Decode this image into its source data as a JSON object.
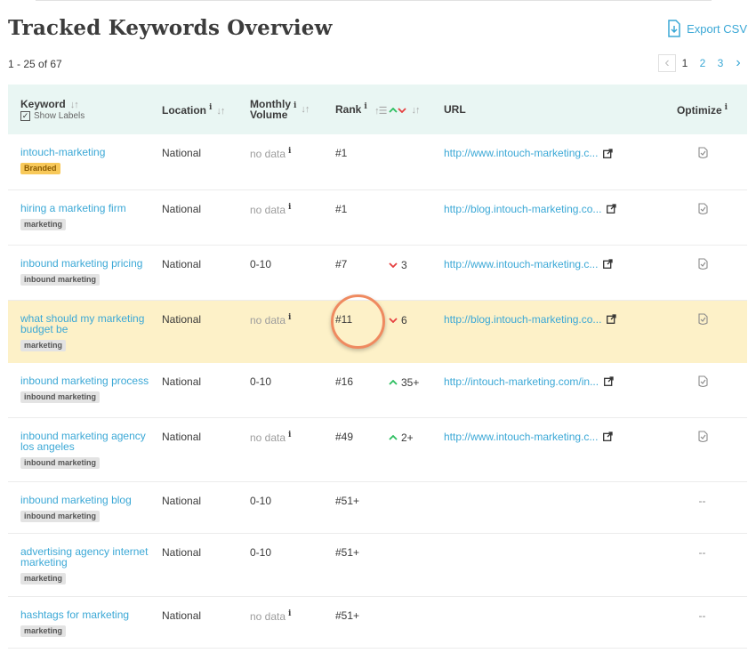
{
  "page": {
    "title": "Tracked Keywords Overview",
    "export_label": "Export CSV",
    "count_text": "1 - 25 of 67"
  },
  "pagination": {
    "prev": "‹",
    "next": "›",
    "pages": [
      "1",
      "2",
      "3"
    ],
    "current": "1"
  },
  "table": {
    "headers": {
      "keyword": "Keyword",
      "show_labels": "Show Labels",
      "location": "Location",
      "monthly_volume_line1": "Monthly",
      "monthly_volume_line2": "Volume",
      "rank": "Rank",
      "url": "URL",
      "optimize": "Optimize"
    },
    "info_glyph": "i",
    "rows": [
      {
        "keyword": "intouch-marketing",
        "tag": "Branded",
        "tag_type": "brand",
        "location": "National",
        "volume": "no data",
        "rank": "#1",
        "change_dir": "",
        "change": "",
        "url": "http://www.intouch-marketing.c...",
        "optimize": "icon"
      },
      {
        "keyword": "hiring a marketing firm",
        "tag": "marketing",
        "tag_type": "label",
        "location": "National",
        "volume": "no data",
        "rank": "#1",
        "change_dir": "",
        "change": "",
        "url": "http://blog.intouch-marketing.co...",
        "optimize": "icon"
      },
      {
        "keyword": "inbound marketing pricing",
        "tag": "inbound marketing",
        "tag_type": "label",
        "location": "National",
        "volume": "0-10",
        "rank": "#7",
        "change_dir": "down",
        "change": "3",
        "url": "http://www.intouch-marketing.c...",
        "optimize": "icon"
      },
      {
        "keyword": "what should my marketing budget be",
        "tag": "marketing",
        "tag_type": "label",
        "location": "National",
        "volume": "no data",
        "rank": "#11",
        "change_dir": "down",
        "change": "6",
        "url": "http://blog.intouch-marketing.co...",
        "optimize": "icon",
        "highlight": true
      },
      {
        "keyword": "inbound marketing process",
        "tag": "inbound marketing",
        "tag_type": "label",
        "location": "National",
        "volume": "0-10",
        "rank": "#16",
        "change_dir": "up",
        "change": "35+",
        "url": "http://intouch-marketing.com/in...",
        "optimize": "icon"
      },
      {
        "keyword": "inbound marketing agency los angeles",
        "tag": "inbound marketing",
        "tag_type": "label",
        "location": "National",
        "volume": "no data",
        "rank": "#49",
        "change_dir": "up",
        "change": "2+",
        "url": "http://www.intouch-marketing.c...",
        "optimize": "icon"
      },
      {
        "keyword": "inbound marketing blog",
        "tag": "inbound marketing",
        "tag_type": "label",
        "location": "National",
        "volume": "0-10",
        "rank": "#51+",
        "change_dir": "",
        "change": "",
        "url": "",
        "optimize": "--"
      },
      {
        "keyword": "advertising agency internet marketing",
        "tag": "marketing",
        "tag_type": "label",
        "location": "National",
        "volume": "0-10",
        "rank": "#51+",
        "change_dir": "",
        "change": "",
        "url": "",
        "optimize": "--"
      },
      {
        "keyword": "hashtags for marketing",
        "tag": "marketing",
        "tag_type": "label",
        "location": "National",
        "volume": "no data",
        "rank": "#51+",
        "change_dir": "",
        "change": "",
        "url": "",
        "optimize": "--"
      }
    ]
  },
  "colors": {
    "link": "#3ba8d6",
    "highlight_row": "#fdf1c8",
    "header_bg": "#e9f6f3",
    "trend_down": "#e64040",
    "trend_up": "#2dbe60",
    "callout_ring": "#ef8a60",
    "branded_tag": "#f8c95a"
  }
}
